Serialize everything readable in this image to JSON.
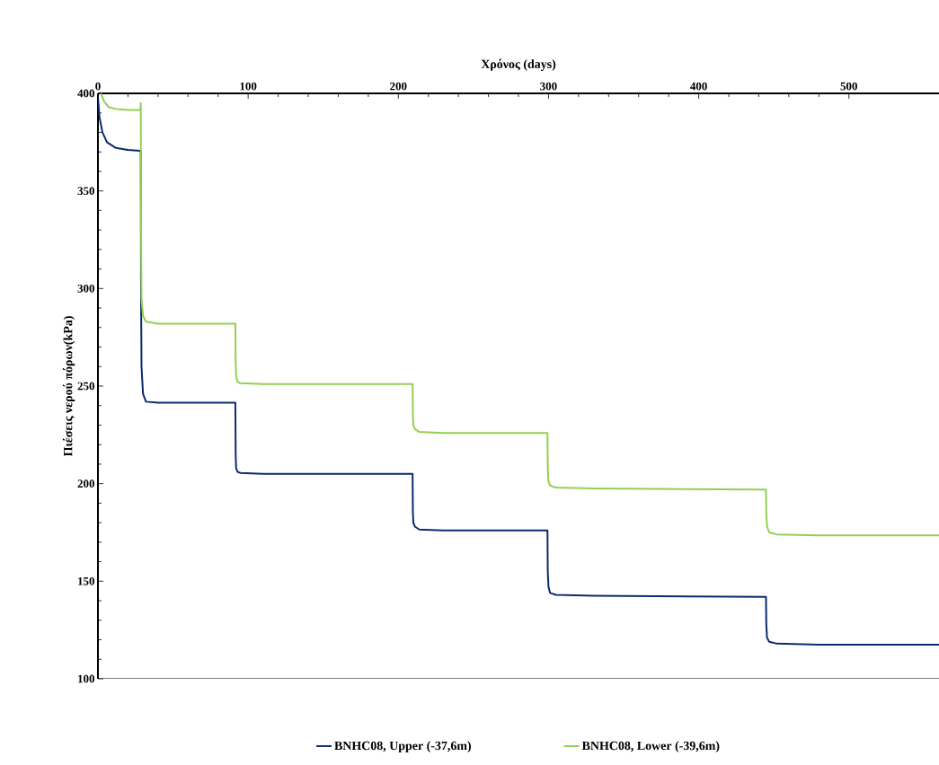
{
  "chart_data": {
    "type": "line",
    "xlabel": "Χρόνος (days)",
    "ylabel": "Πιέσεις νερού πόρων(kPa)",
    "xlim": [
      0,
      560
    ],
    "xticks": [
      0,
      100,
      200,
      300,
      400,
      500
    ],
    "ylim": [
      100,
      400
    ],
    "yticks": [
      100,
      150,
      200,
      250,
      300,
      350,
      400
    ],
    "legend": "bottom",
    "line_style": "solid",
    "series": [
      {
        "name": "BNHC08, Upper (-37,6m)",
        "color": "#0b2a6e",
        "x": [
          0,
          1,
          3,
          6,
          12,
          20,
          28.5,
          28.7,
          29,
          30,
          32,
          40,
          91.5,
          91.7,
          92,
          93,
          95,
          110,
          209.5,
          209.7,
          210,
          211,
          214,
          230,
          299.3,
          299.5,
          300,
          301,
          305,
          330,
          444.8,
          445,
          445.5,
          447,
          452,
          480,
          560
        ],
        "values": [
          398,
          388,
          380,
          375,
          372,
          371,
          370.5,
          300,
          260,
          246,
          242,
          241.5,
          241.5,
          215,
          208,
          206,
          205.5,
          205,
          205,
          185,
          180,
          178,
          176.5,
          176,
          176,
          155,
          147,
          144,
          143,
          142.5,
          142,
          128,
          121,
          119,
          118,
          117.5,
          117.5
        ]
      },
      {
        "name": "BNHC08, Lower (-39,6m)",
        "color": "#92d050",
        "x": [
          2,
          4,
          7,
          12,
          20,
          28.3,
          28.5,
          28.7,
          29,
          30,
          32,
          40,
          91.5,
          91.7,
          92,
          93,
          95,
          110,
          209.5,
          209.7,
          210,
          211,
          214,
          230,
          299.3,
          299.5,
          300,
          301,
          305,
          330,
          444.8,
          445,
          445.5,
          447,
          452,
          480,
          560
        ],
        "values": [
          400,
          396,
          393,
          392,
          391.5,
          391.5,
          395,
          330,
          295,
          286,
          283,
          282,
          282,
          262,
          255,
          252,
          251.5,
          251,
          251,
          236,
          230,
          228,
          226.5,
          226,
          226,
          208,
          201,
          199,
          198,
          197.5,
          197,
          185,
          178,
          175,
          174,
          173.5,
          173.5
        ]
      }
    ]
  }
}
